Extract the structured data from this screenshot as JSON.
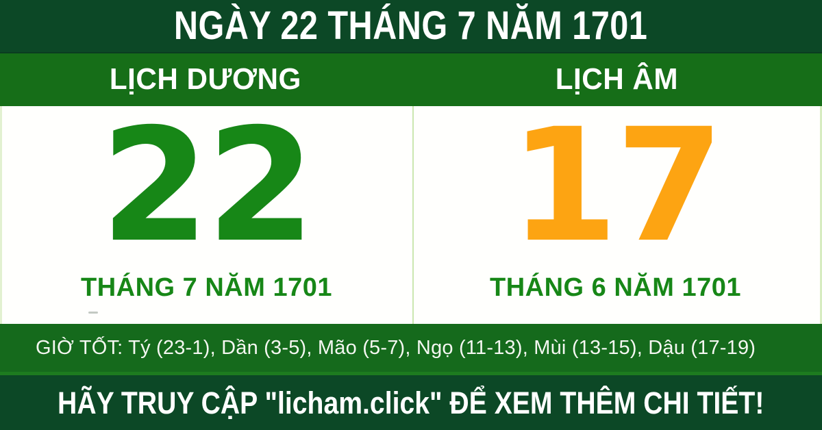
{
  "colors": {
    "dark_band": "#0c4826",
    "mid_band": "#166e18",
    "strip_band": "#156a1c",
    "solar_green": "#178717",
    "lunar_orange": "#fda412",
    "divider": "#cbe7b0"
  },
  "header": {
    "title": "NGÀY 22 THÁNG 7 NĂM 1701"
  },
  "calendar_headers": {
    "solar": "LỊCH DƯƠNG",
    "lunar": "LỊCH ÂM"
  },
  "solar": {
    "day": "22",
    "month_year": "THÁNG 7 NĂM 1701"
  },
  "lunar": {
    "day": "17",
    "month_year": "THÁNG 6 NĂM 1701"
  },
  "good_hours": {
    "text": "GIỜ TỐT: Tý (23-1), Dần (3-5), Mão (5-7), Ngọ (11-13), Mùi (13-15), Dậu (17-19)"
  },
  "footer": {
    "text": "HÃY TRUY CẬP \"licham.click\" ĐỂ XEM THÊM CHI TIẾT!"
  }
}
